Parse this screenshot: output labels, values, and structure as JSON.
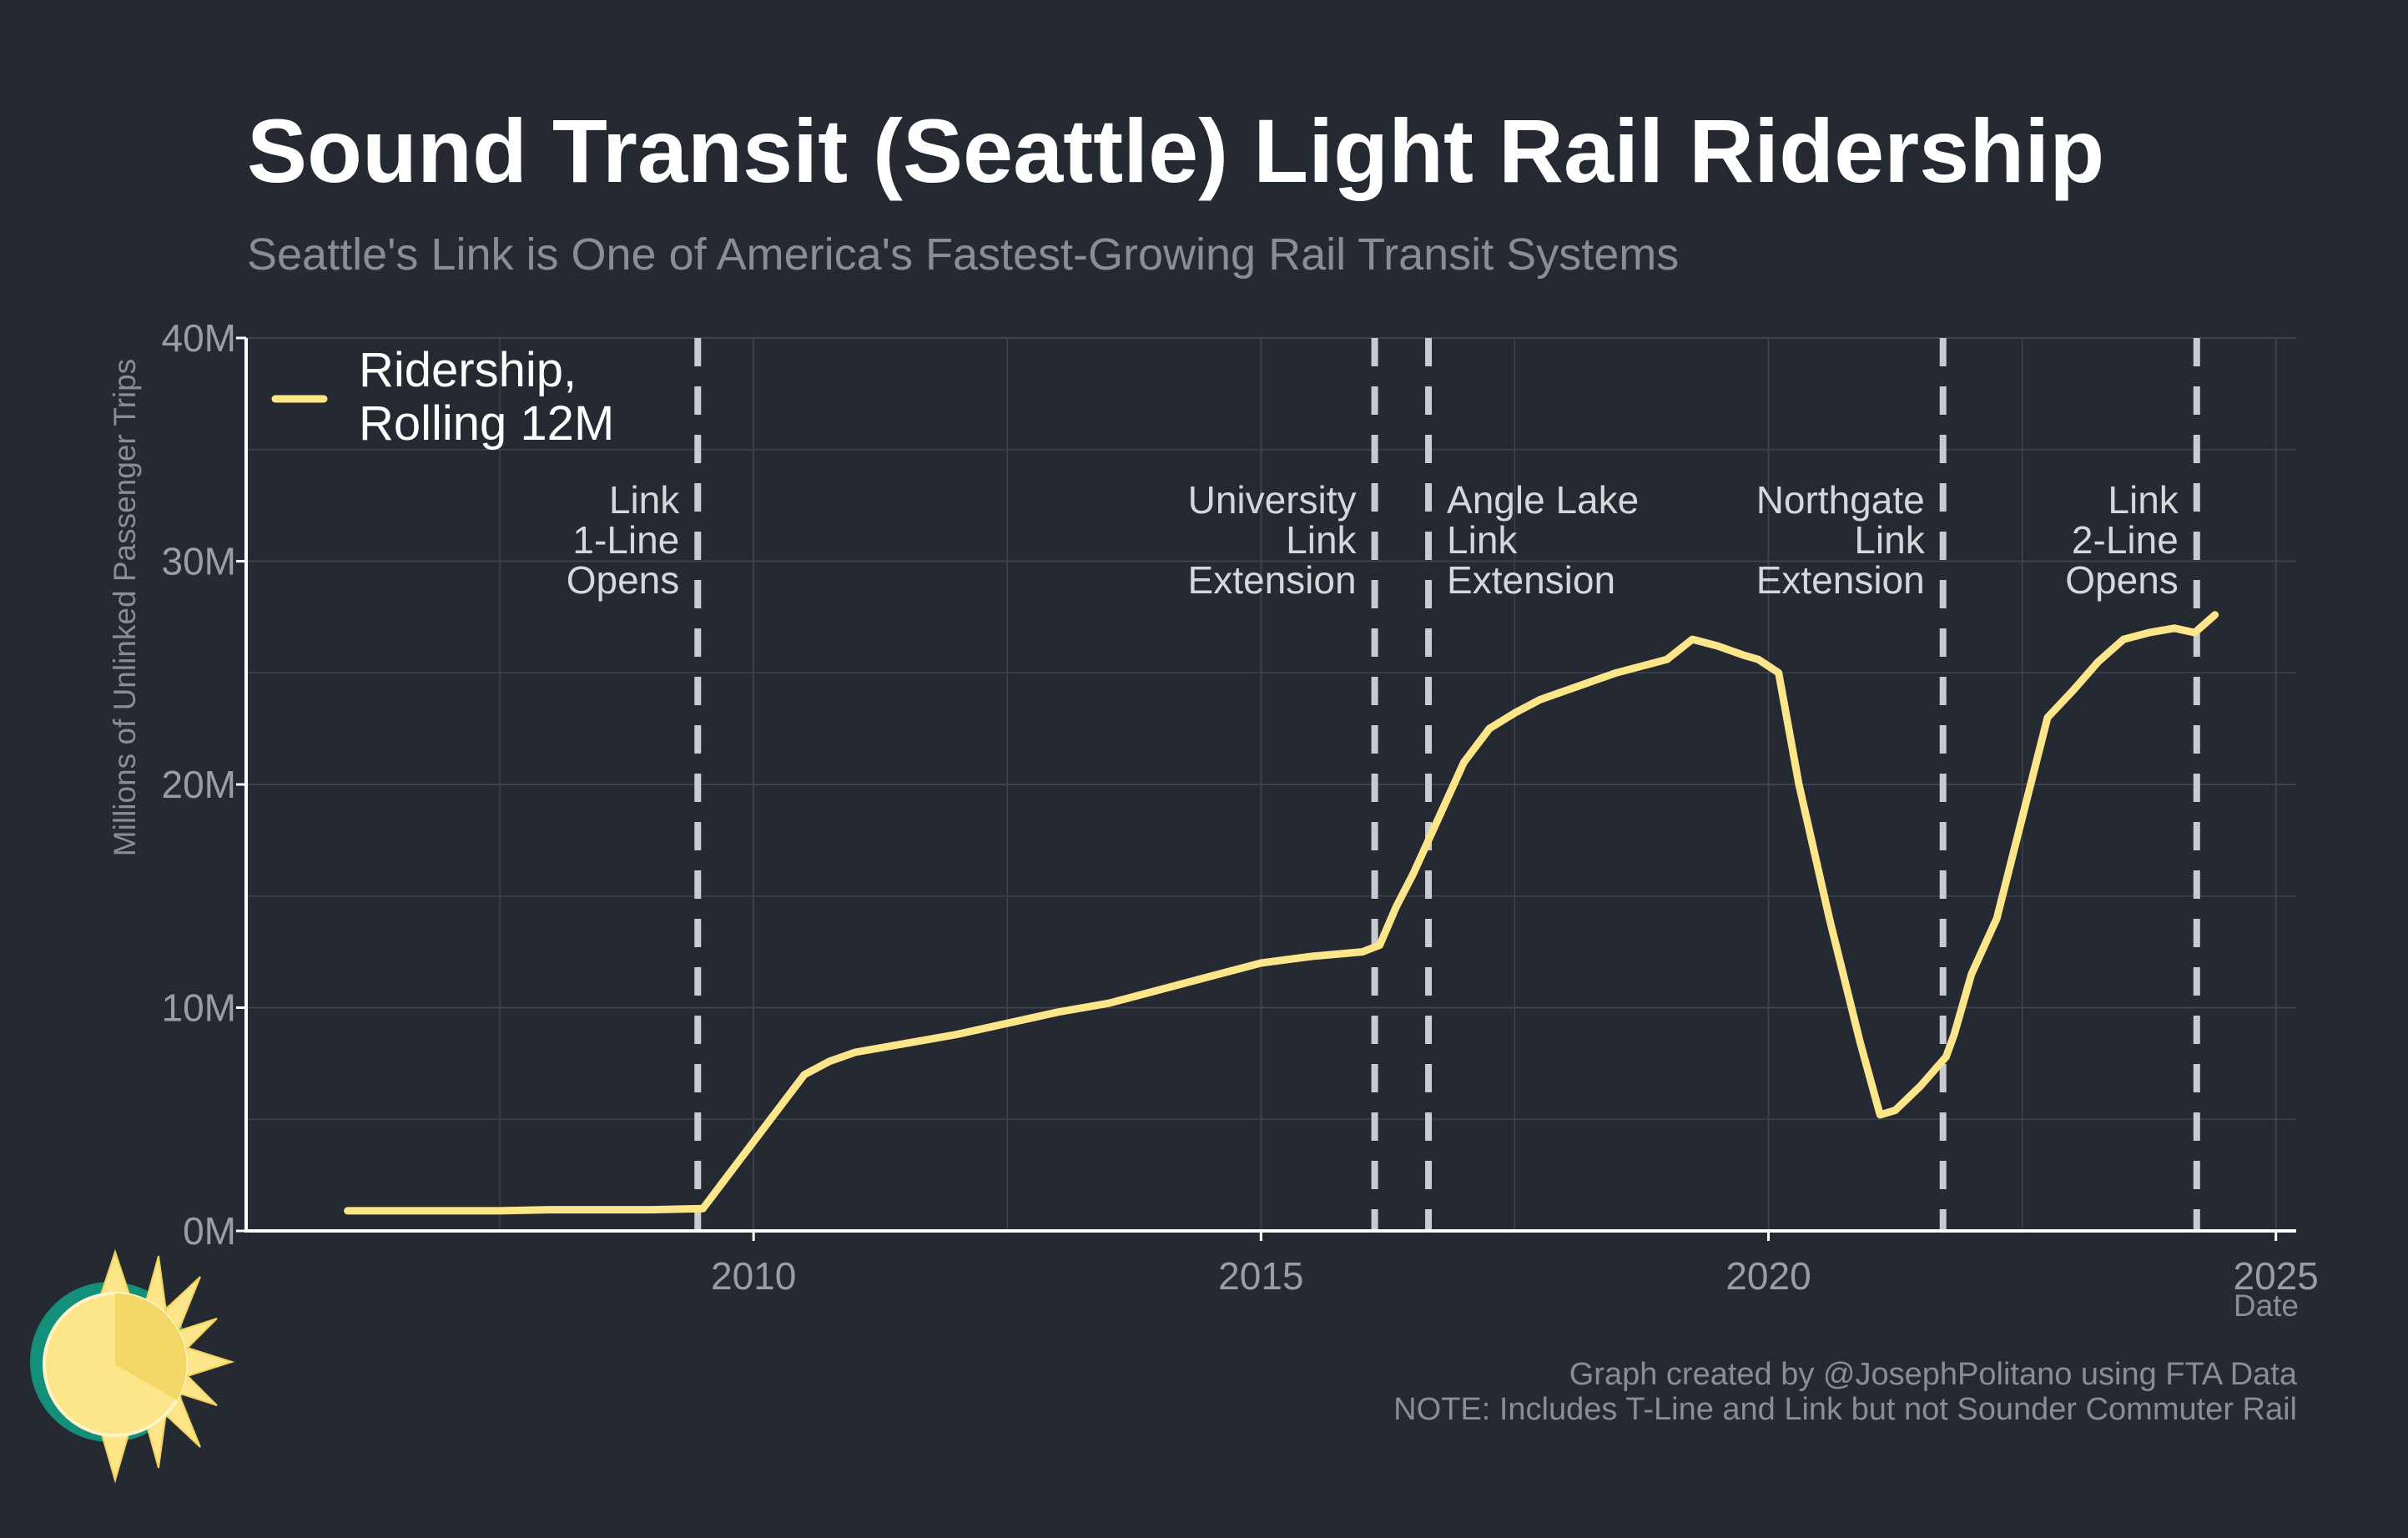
{
  "title": "Sound Transit (Seattle) Light Rail Ridership",
  "subtitle": "Seattle's Link is One of America's Fastest-Growing Rail Transit Systems",
  "caption": [
    "Graph created by @JosephPolitano using FTA Data",
    "NOTE: Includes T-Line and Link but not Sounder Commuter Rail"
  ],
  "colors": {
    "background": "#252932",
    "line": "#fde68a",
    "grid": "#3d424c",
    "event_lines": "#c8cbd0",
    "axis": "#ffffff",
    "logo_sun": "#fde68a",
    "logo_teal": "#14907a"
  },
  "icons": [
    "sun-logo-icon"
  ],
  "chart_data": {
    "type": "line",
    "title": "Sound Transit (Seattle) Light Rail Ridership",
    "subtitle": "Seattle's Link is One of America's Fastest-Growing Rail Transit Systems",
    "xlabel": "Date",
    "ylabel": "Millions of Unlinked Passenger Trips",
    "xlim": [
      2005.0,
      2025.2
    ],
    "ylim": [
      0,
      40
    ],
    "x_ticks": [
      2010,
      2015,
      2020,
      2025
    ],
    "x_tick_labels": [
      "2010",
      "2015",
      "2020",
      "2025"
    ],
    "y_ticks": [
      0,
      10,
      20,
      30,
      40
    ],
    "y_tick_labels": [
      "0M",
      "10M",
      "20M",
      "30M",
      "40M"
    ],
    "grid": true,
    "legend_position": "top-left",
    "series": [
      {
        "name": "Ridership, Rolling 12M",
        "x": [
          2006.0,
          2006.5,
          2007.0,
          2007.5,
          2008.0,
          2008.5,
          2009.0,
          2009.5,
          2009.75,
          2010.0,
          2010.25,
          2010.5,
          2010.75,
          2011.0,
          2011.5,
          2012.0,
          2012.5,
          2013.0,
          2013.5,
          2014.0,
          2014.5,
          2015.0,
          2015.5,
          2016.0,
          2016.17,
          2016.33,
          2016.5,
          2016.75,
          2017.0,
          2017.25,
          2017.5,
          2017.75,
          2018.0,
          2018.5,
          2019.0,
          2019.25,
          2019.5,
          2019.75,
          2019.9,
          2020.0,
          2020.1,
          2020.3,
          2020.6,
          2020.9,
          2021.1,
          2021.25,
          2021.5,
          2021.75,
          2021.83,
          2022.0,
          2022.25,
          2022.5,
          2022.75,
          2023.0,
          2023.25,
          2023.5,
          2023.75,
          2024.0,
          2024.2,
          2024.4
        ],
        "values": [
          0.9,
          0.9,
          0.9,
          0.9,
          0.95,
          0.95,
          0.95,
          1.0,
          2.5,
          4.0,
          5.5,
          7.0,
          7.6,
          8.0,
          8.4,
          8.8,
          9.3,
          9.8,
          10.2,
          10.8,
          11.4,
          12.0,
          12.3,
          12.5,
          12.8,
          14.5,
          16.0,
          18.5,
          21.0,
          22.5,
          23.2,
          23.8,
          24.2,
          25.0,
          25.6,
          26.5,
          26.2,
          25.8,
          25.6,
          25.3,
          25.0,
          20.0,
          14.0,
          8.5,
          5.2,
          5.4,
          6.5,
          7.8,
          8.8,
          11.5,
          14.0,
          18.5,
          23.0,
          24.2,
          25.5,
          26.5,
          26.8,
          27.0,
          26.8,
          27.6
        ]
      }
    ],
    "annotations": [
      {
        "x": 2009.45,
        "lines": [
          "Link",
          "1-Line",
          "Opens"
        ],
        "align": "right"
      },
      {
        "x": 2016.12,
        "lines": [
          "University",
          "Link",
          "Extension"
        ],
        "align": "right"
      },
      {
        "x": 2016.65,
        "lines": [
          "Angle Lake",
          "Link",
          "Extension"
        ],
        "align": "left"
      },
      {
        "x": 2021.72,
        "lines": [
          "Northgate",
          "Link",
          "Extension"
        ],
        "align": "right"
      },
      {
        "x": 2024.22,
        "lines": [
          "Link",
          "2-Line",
          "Opens"
        ],
        "align": "right"
      }
    ]
  }
}
